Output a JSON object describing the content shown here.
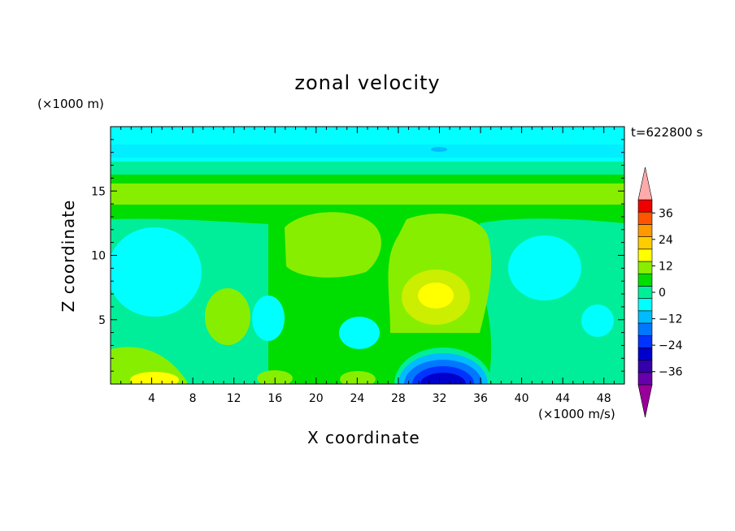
{
  "chart_data": {
    "type": "heatmap",
    "title": "zonal velocity",
    "xlabel": "X coordinate",
    "ylabel": "Z coordinate",
    "x_unit": "(×1000 m/s)",
    "y_unit": "(×1000 m)",
    "time_label": "t=622800 s",
    "xlim": [
      0,
      50
    ],
    "ylim": [
      0,
      20
    ],
    "x_ticks": [
      4,
      8,
      12,
      16,
      20,
      24,
      28,
      32,
      36,
      40,
      44,
      48
    ],
    "y_ticks": [
      5,
      10,
      15
    ],
    "colorbar": {
      "levels": [
        -42,
        -36,
        -30,
        -24,
        -18,
        -12,
        -6,
        0,
        6,
        12,
        18,
        24,
        30,
        36,
        42
      ],
      "tick_values": [
        -36,
        -24,
        -12,
        0,
        12,
        24,
        36
      ],
      "colors": [
        "#6600aa",
        "#3300aa",
        "#0000cc",
        "#0033ff",
        "#0077ff",
        "#00bbff",
        "#00ffff",
        "#00ee99",
        "#00dd00",
        "#88ee00",
        "#ffff00",
        "#ffcc00",
        "#ff9900",
        "#ff5500",
        "#ee0000"
      ],
      "under_color": "#990099",
      "over_color": "#ffaaaa"
    },
    "features": [
      {
        "description": "upper cyan band",
        "x_range": [
          0,
          50
        ],
        "z_range": [
          16.5,
          19.5
        ],
        "value": -6
      },
      {
        "description": "green/yellow band",
        "x_range": [
          0,
          50
        ],
        "z_range": [
          13,
          16
        ],
        "value": 6
      },
      {
        "description": "positive core",
        "x": 31,
        "z": 7,
        "value": 15
      },
      {
        "description": "negative core near bottom",
        "x": 31.5,
        "z": 0.5,
        "value": -30
      }
    ]
  }
}
